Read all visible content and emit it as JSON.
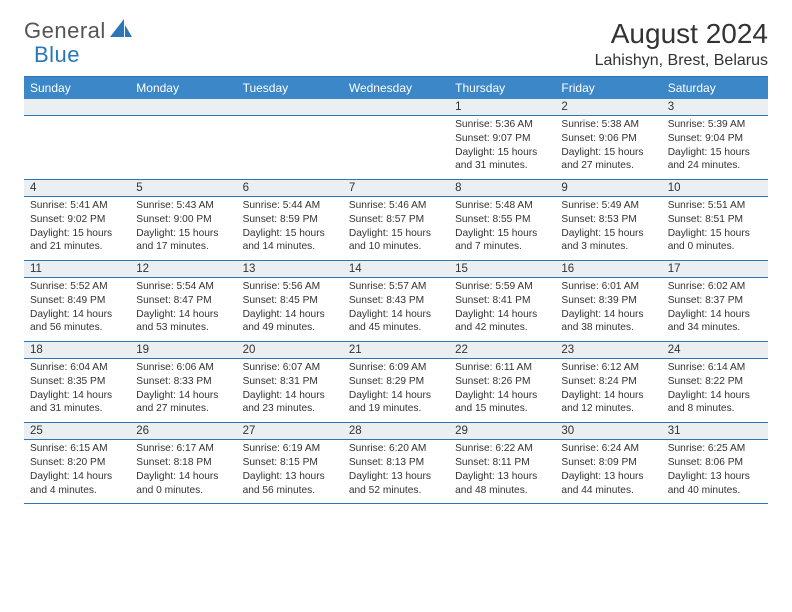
{
  "logo": {
    "textA": "General",
    "textB": "Blue"
  },
  "title": "August 2024",
  "location": "Lahishyn, Brest, Belarus",
  "colors": {
    "accent": "#3b87c8",
    "rule": "#2a76b8",
    "daynum_bg": "#eceff1",
    "text": "#333333",
    "bg": "#ffffff"
  },
  "weekdays": [
    "Sunday",
    "Monday",
    "Tuesday",
    "Wednesday",
    "Thursday",
    "Friday",
    "Saturday"
  ],
  "weeks": [
    [
      {
        "n": "",
        "sr": "",
        "ss": "",
        "dl": ""
      },
      {
        "n": "",
        "sr": "",
        "ss": "",
        "dl": ""
      },
      {
        "n": "",
        "sr": "",
        "ss": "",
        "dl": ""
      },
      {
        "n": "",
        "sr": "",
        "ss": "",
        "dl": ""
      },
      {
        "n": "1",
        "sr": "5:36 AM",
        "ss": "9:07 PM",
        "dl": "15 hours and 31 minutes."
      },
      {
        "n": "2",
        "sr": "5:38 AM",
        "ss": "9:06 PM",
        "dl": "15 hours and 27 minutes."
      },
      {
        "n": "3",
        "sr": "5:39 AM",
        "ss": "9:04 PM",
        "dl": "15 hours and 24 minutes."
      }
    ],
    [
      {
        "n": "4",
        "sr": "5:41 AM",
        "ss": "9:02 PM",
        "dl": "15 hours and 21 minutes."
      },
      {
        "n": "5",
        "sr": "5:43 AM",
        "ss": "9:00 PM",
        "dl": "15 hours and 17 minutes."
      },
      {
        "n": "6",
        "sr": "5:44 AM",
        "ss": "8:59 PM",
        "dl": "15 hours and 14 minutes."
      },
      {
        "n": "7",
        "sr": "5:46 AM",
        "ss": "8:57 PM",
        "dl": "15 hours and 10 minutes."
      },
      {
        "n": "8",
        "sr": "5:48 AM",
        "ss": "8:55 PM",
        "dl": "15 hours and 7 minutes."
      },
      {
        "n": "9",
        "sr": "5:49 AM",
        "ss": "8:53 PM",
        "dl": "15 hours and 3 minutes."
      },
      {
        "n": "10",
        "sr": "5:51 AM",
        "ss": "8:51 PM",
        "dl": "15 hours and 0 minutes."
      }
    ],
    [
      {
        "n": "11",
        "sr": "5:52 AM",
        "ss": "8:49 PM",
        "dl": "14 hours and 56 minutes."
      },
      {
        "n": "12",
        "sr": "5:54 AM",
        "ss": "8:47 PM",
        "dl": "14 hours and 53 minutes."
      },
      {
        "n": "13",
        "sr": "5:56 AM",
        "ss": "8:45 PM",
        "dl": "14 hours and 49 minutes."
      },
      {
        "n": "14",
        "sr": "5:57 AM",
        "ss": "8:43 PM",
        "dl": "14 hours and 45 minutes."
      },
      {
        "n": "15",
        "sr": "5:59 AM",
        "ss": "8:41 PM",
        "dl": "14 hours and 42 minutes."
      },
      {
        "n": "16",
        "sr": "6:01 AM",
        "ss": "8:39 PM",
        "dl": "14 hours and 38 minutes."
      },
      {
        "n": "17",
        "sr": "6:02 AM",
        "ss": "8:37 PM",
        "dl": "14 hours and 34 minutes."
      }
    ],
    [
      {
        "n": "18",
        "sr": "6:04 AM",
        "ss": "8:35 PM",
        "dl": "14 hours and 31 minutes."
      },
      {
        "n": "19",
        "sr": "6:06 AM",
        "ss": "8:33 PM",
        "dl": "14 hours and 27 minutes."
      },
      {
        "n": "20",
        "sr": "6:07 AM",
        "ss": "8:31 PM",
        "dl": "14 hours and 23 minutes."
      },
      {
        "n": "21",
        "sr": "6:09 AM",
        "ss": "8:29 PM",
        "dl": "14 hours and 19 minutes."
      },
      {
        "n": "22",
        "sr": "6:11 AM",
        "ss": "8:26 PM",
        "dl": "14 hours and 15 minutes."
      },
      {
        "n": "23",
        "sr": "6:12 AM",
        "ss": "8:24 PM",
        "dl": "14 hours and 12 minutes."
      },
      {
        "n": "24",
        "sr": "6:14 AM",
        "ss": "8:22 PM",
        "dl": "14 hours and 8 minutes."
      }
    ],
    [
      {
        "n": "25",
        "sr": "6:15 AM",
        "ss": "8:20 PM",
        "dl": "14 hours and 4 minutes."
      },
      {
        "n": "26",
        "sr": "6:17 AM",
        "ss": "8:18 PM",
        "dl": "14 hours and 0 minutes."
      },
      {
        "n": "27",
        "sr": "6:19 AM",
        "ss": "8:15 PM",
        "dl": "13 hours and 56 minutes."
      },
      {
        "n": "28",
        "sr": "6:20 AM",
        "ss": "8:13 PM",
        "dl": "13 hours and 52 minutes."
      },
      {
        "n": "29",
        "sr": "6:22 AM",
        "ss": "8:11 PM",
        "dl": "13 hours and 48 minutes."
      },
      {
        "n": "30",
        "sr": "6:24 AM",
        "ss": "8:09 PM",
        "dl": "13 hours and 44 minutes."
      },
      {
        "n": "31",
        "sr": "6:25 AM",
        "ss": "8:06 PM",
        "dl": "13 hours and 40 minutes."
      }
    ]
  ],
  "labels": {
    "sunrise": "Sunrise:",
    "sunset": "Sunset:",
    "daylight": "Daylight:"
  }
}
